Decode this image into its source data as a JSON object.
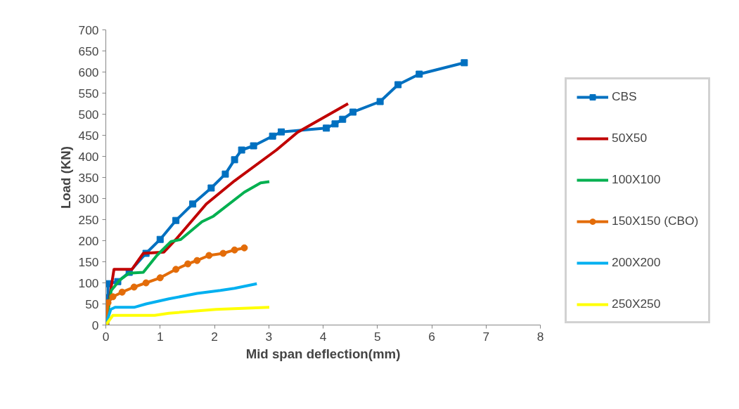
{
  "chart_data": {
    "type": "line",
    "xlabel": "Mid span deflection(mm)",
    "ylabel": "Load (KN)",
    "xlim": [
      0,
      8
    ],
    "ylim": [
      0,
      700
    ],
    "xticks": [
      0,
      1,
      2,
      3,
      4,
      5,
      6,
      7,
      8
    ],
    "yticks": [
      0,
      50,
      100,
      150,
      200,
      250,
      300,
      350,
      400,
      450,
      500,
      550,
      600,
      650,
      700
    ],
    "grid": false,
    "legend": "right",
    "series": [
      {
        "name": "CBS",
        "color": "#0070c0",
        "marker": "square",
        "x": [
          0,
          0.0,
          0.04,
          0.04,
          0.22,
          0.43,
          0.74,
          1.0,
          1.29,
          1.6,
          1.94,
          2.2,
          2.37,
          2.5,
          2.72,
          3.07,
          3.23,
          4.06,
          4.22,
          4.36,
          4.55,
          5.05,
          5.38,
          5.77,
          6.6
        ],
        "values": [
          0,
          25,
          65,
          98,
          103,
          125,
          170,
          203,
          248,
          287,
          325,
          358,
          392,
          415,
          425,
          448,
          458,
          467,
          477,
          488,
          505,
          530,
          570,
          595,
          622
        ]
      },
      {
        "name": "50X50",
        "color": "#c00000",
        "marker": "none",
        "x": [
          0,
          0.09,
          0.15,
          0.48,
          0.69,
          1.07,
          1.29,
          1.85,
          2.37,
          3.14,
          3.53,
          4.46
        ],
        "values": [
          0,
          82,
          132,
          132,
          170,
          173,
          203,
          287,
          342,
          415,
          457,
          525
        ]
      },
      {
        "name": "100X100",
        "color": "#00b050",
        "marker": "none",
        "x": [
          0,
          0.1,
          0.26,
          0.43,
          0.69,
          0.94,
          1.2,
          1.38,
          1.77,
          1.98,
          2.55,
          2.85,
          3.01
        ],
        "values": [
          0,
          82,
          107,
          123,
          125,
          165,
          198,
          203,
          245,
          258,
          315,
          337,
          340
        ]
      },
      {
        "name": "150X150 (CBO)",
        "color": "#e36c09",
        "marker": "circle",
        "x": [
          0,
          0.04,
          0.13,
          0.3,
          0.52,
          0.74,
          1.0,
          1.29,
          1.51,
          1.68,
          1.9,
          2.16,
          2.37,
          2.55
        ],
        "values": [
          0,
          53,
          67,
          78,
          90,
          100,
          112,
          132,
          145,
          153,
          165,
          170,
          178,
          183
        ]
      },
      {
        "name": "200X200",
        "color": "#00b0f0",
        "marker": "none",
        "x": [
          0,
          0.09,
          0.17,
          0.52,
          0.74,
          1.16,
          1.68,
          2.11,
          2.37,
          2.78
        ],
        "values": [
          0,
          37,
          42,
          42,
          50,
          62,
          75,
          82,
          87,
          98
        ]
      },
      {
        "name": "250X250",
        "color": "#ffff00",
        "marker": "none",
        "x": [
          0,
          0.13,
          0.9,
          1.16,
          2.03,
          3.01
        ],
        "values": [
          0,
          23,
          23,
          28,
          37,
          42
        ]
      }
    ]
  }
}
